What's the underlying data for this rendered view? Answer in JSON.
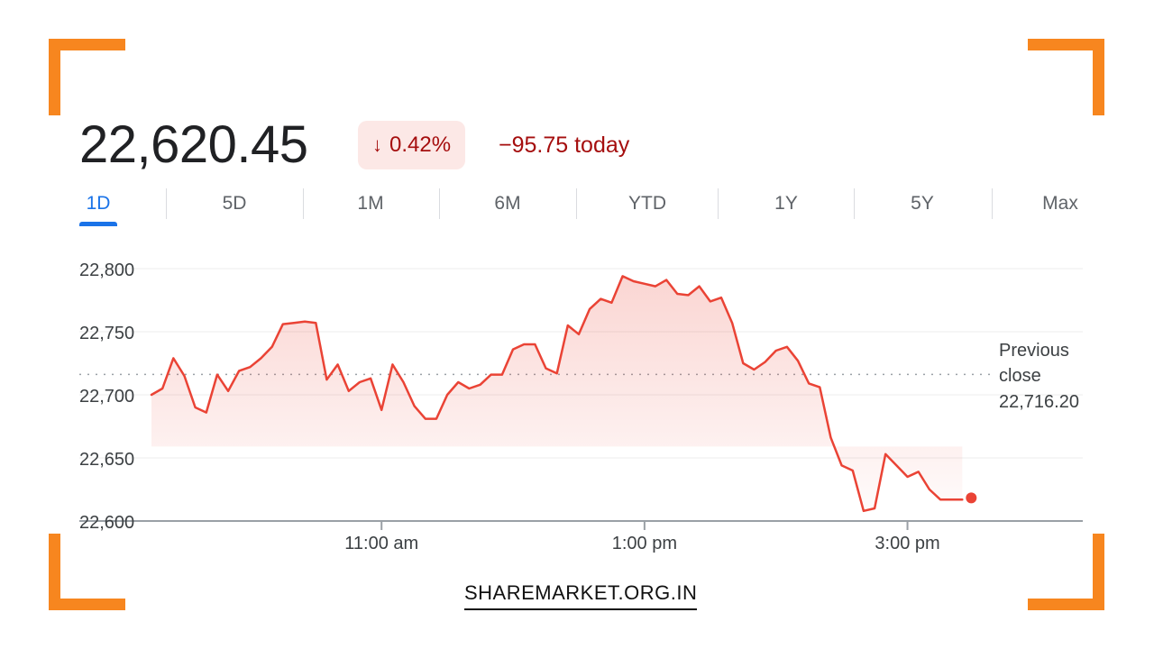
{
  "quote": {
    "price": "22,620.45",
    "change_percent": "0.42%",
    "change_today": "−95.75 today",
    "color_negative": "#a50e0e"
  },
  "range_tabs": [
    "1D",
    "5D",
    "1M",
    "6M",
    "YTD",
    "1Y",
    "5Y",
    "Max"
  ],
  "active_tab": "1D",
  "chart_data": {
    "type": "area",
    "title": "",
    "xlabel": "",
    "ylabel": "",
    "y_tick_labels": [
      "22,800",
      "22,750",
      "22,700",
      "22,650",
      "22,600"
    ],
    "y_ticks": [
      22800,
      22750,
      22700,
      22650,
      22600
    ],
    "ylim": [
      22600,
      22800
    ],
    "x_tick_labels": [
      "11:00 am",
      "1:00 pm",
      "3:00 pm"
    ],
    "x_ticks": [
      "11:00",
      "13:00",
      "15:00"
    ],
    "xlim": [
      "09:15",
      "16:20"
    ],
    "grid": true,
    "line_color": "#ea4335",
    "previous_close": {
      "label_line1": "Previous",
      "label_line2": "close",
      "value_label": "22,716.20",
      "value": 22716.2
    },
    "series": [
      {
        "x": [
          "09:15",
          "09:20",
          "09:25",
          "09:30",
          "09:35",
          "09:40",
          "09:45",
          "09:50",
          "09:55",
          "10:00",
          "10:05",
          "10:10",
          "10:15",
          "10:20",
          "10:25",
          "10:30",
          "10:35",
          "10:40",
          "10:45",
          "10:50",
          "10:55",
          "11:00",
          "11:05",
          "11:10",
          "11:15",
          "11:20",
          "11:25",
          "11:30",
          "11:35",
          "11:40",
          "11:45",
          "11:50",
          "11:55",
          "12:00",
          "12:05",
          "12:10",
          "12:15",
          "12:20",
          "12:25",
          "12:30",
          "12:35",
          "12:40",
          "12:45",
          "12:50",
          "12:55",
          "13:00",
          "13:05",
          "13:10",
          "13:15",
          "13:20",
          "13:25",
          "13:30",
          "13:35",
          "13:40",
          "13:45",
          "13:50",
          "13:55",
          "14:00",
          "14:05",
          "14:10",
          "14:15",
          "14:20",
          "14:25",
          "14:30",
          "14:35",
          "14:40",
          "14:45",
          "14:50",
          "14:55",
          "15:00",
          "15:05",
          "15:10",
          "15:15",
          "15:20",
          "15:25"
        ],
        "values": [
          22700,
          22705,
          22729,
          22715,
          22690,
          22686,
          22716,
          22703,
          22719,
          22722,
          22729,
          22738,
          22756,
          22757,
          22758,
          22757,
          22712,
          22724,
          22703,
          22710,
          22713,
          22688,
          22724,
          22710,
          22691,
          22681,
          22681,
          22700,
          22710,
          22705,
          22708,
          22716,
          22716,
          22736,
          22740,
          22740,
          22721,
          22717,
          22755,
          22748,
          22768,
          22776,
          22773,
          22794,
          22790,
          22788,
          22786,
          22791,
          22780,
          22779,
          22786,
          22774,
          22777,
          22757,
          22725,
          22720,
          22726,
          22735,
          22738,
          22727,
          22709,
          22706,
          22666,
          22644,
          22640,
          22608,
          22610,
          22653,
          22644,
          22635,
          22639,
          22625,
          22617,
          22617,
          22617
        ]
      }
    ],
    "last_value": 22620.45
  },
  "footer": {
    "text": "SHAREMARKET.ORG.IN"
  }
}
